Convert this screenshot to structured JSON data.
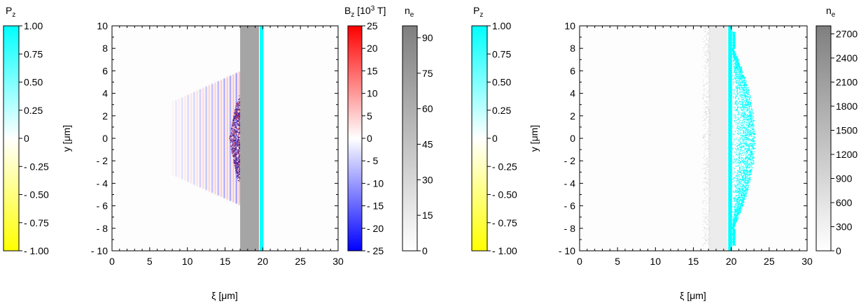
{
  "colors": {
    "pz_top": "#00ffff",
    "pz_mid": "#ffffff",
    "pz_bottom": "#ffff00",
    "bz_top": "#ff0000",
    "bz_mid": "#ffffff",
    "bz_bottom": "#0000ff",
    "ne_top": "#7f7f7f",
    "ne_bottom": "#ffffff",
    "ion_layer": "#00ffff",
    "field_blue": "#1a1aff",
    "field_red": "#ff6666"
  },
  "chart_data": [
    {
      "type": "heatmap",
      "panel": "left",
      "title": "",
      "xlabel": "ξ [μm]",
      "ylabel": "y [μm]",
      "xlim": [
        0,
        30
      ],
      "ylim": [
        -10,
        10
      ],
      "xticks": [
        "0",
        "5",
        "10",
        "15",
        "20",
        "25",
        "30"
      ],
      "yticks": [
        "- 10",
        "- 8",
        "- 6",
        "- 4",
        "- 2",
        "0",
        "2",
        "4",
        "6",
        "8",
        "10"
      ],
      "grid": false,
      "layers": [
        {
          "name": "n_e",
          "feature": "uniform dense plasma slab",
          "x_range": [
            17,
            19.5
          ],
          "y_range": [
            -10,
            10
          ],
          "relative_density": 0.7
        },
        {
          "name": "P_z",
          "feature": "thin proton layer",
          "x_range": [
            19.6,
            20.1
          ],
          "y_range": [
            -10,
            10
          ],
          "value": 1.0
        },
        {
          "name": "B_z",
          "feature": "laser field fringes",
          "x_range": [
            8,
            17
          ],
          "y_range": [
            -6,
            6
          ],
          "period": 0.8,
          "amplitude_1e3T": 25
        },
        {
          "name": "B_z",
          "feature": "strong turbulent field at slab front",
          "x_range": [
            15.5,
            17
          ],
          "y_range": [
            -3,
            3
          ],
          "amplitude_1e3T": -25
        }
      ],
      "colorbars": [
        {
          "label": "P",
          "label_sub": "z",
          "ticks": [
            "1.00",
            "0.75",
            "0.50",
            "0.25",
            "0",
            "- 0.25",
            "- 0.50",
            "- 0.75",
            "- 1.00"
          ],
          "range": [
            -1,
            1
          ]
        },
        {
          "label": "B",
          "label_sub": "z",
          "label_rest": " [10",
          "label_sup": "3",
          "label_end": " T]",
          "ticks": [
            "25",
            "20",
            "15",
            "10",
            "5",
            "0",
            "- 5",
            "- 10",
            "- 15",
            "- 20",
            "- 25"
          ],
          "range": [
            -25,
            25
          ]
        },
        {
          "label": "n",
          "label_sub": "e",
          "ticks": [
            "90",
            "75",
            "60",
            "45",
            "30",
            "15",
            "0"
          ],
          "values": [
            90,
            75,
            60,
            45,
            30,
            15,
            0
          ],
          "range": [
            0,
            95
          ]
        }
      ]
    },
    {
      "type": "heatmap",
      "panel": "right",
      "title": "",
      "xlabel": "ξ [μm]",
      "ylabel": "y [μm]",
      "xlim": [
        0,
        30
      ],
      "ylim": [
        -10,
        10
      ],
      "xticks": [
        "0",
        "5",
        "10",
        "15",
        "20",
        "25",
        "30"
      ],
      "yticks": [
        "- 10",
        "- 8",
        "- 6",
        "- 4",
        "- 2",
        "0",
        "2",
        "4",
        "6",
        "8",
        "10"
      ],
      "grid": false,
      "layers": [
        {
          "name": "n_e",
          "feature": "faint slab",
          "x_range": [
            17,
            19.5
          ],
          "y_range": [
            -10,
            10
          ],
          "relative_density": 0.15
        },
        {
          "name": "n_e",
          "feature": "scattered electrons in front of slab",
          "x_range": [
            16.2,
            17.2
          ],
          "y_range": [
            -10,
            10
          ],
          "relative_density": 0.08
        },
        {
          "name": "P_z",
          "feature": "proton layer",
          "x_range": [
            19.6,
            20.1
          ],
          "y_range": [
            -10,
            10
          ],
          "value": 1.0
        },
        {
          "name": "P_z",
          "feature": "accelerated proton bulge",
          "x_range": [
            20.1,
            23.2
          ],
          "y_range": [
            -8,
            8
          ],
          "apex_x": 23.0,
          "value": 1.0
        }
      ],
      "colorbars": [
        {
          "label": "P",
          "label_sub": "z",
          "ticks": [
            "1.00",
            "0.75",
            "0.50",
            "0.25",
            "0",
            "- 0.25",
            "- 0.50",
            "- 0.75",
            "- 1.00"
          ],
          "range": [
            -1,
            1
          ]
        },
        {
          "label": "n",
          "label_sub": "e",
          "ticks": [
            "2700",
            "2400",
            "2100",
            "1800",
            "1500",
            "1200",
            "900",
            "600",
            "300",
            "0"
          ],
          "values": [
            2700,
            2400,
            2100,
            1800,
            1500,
            1200,
            900,
            600,
            300,
            0
          ],
          "range": [
            0,
            2800
          ]
        }
      ]
    }
  ]
}
